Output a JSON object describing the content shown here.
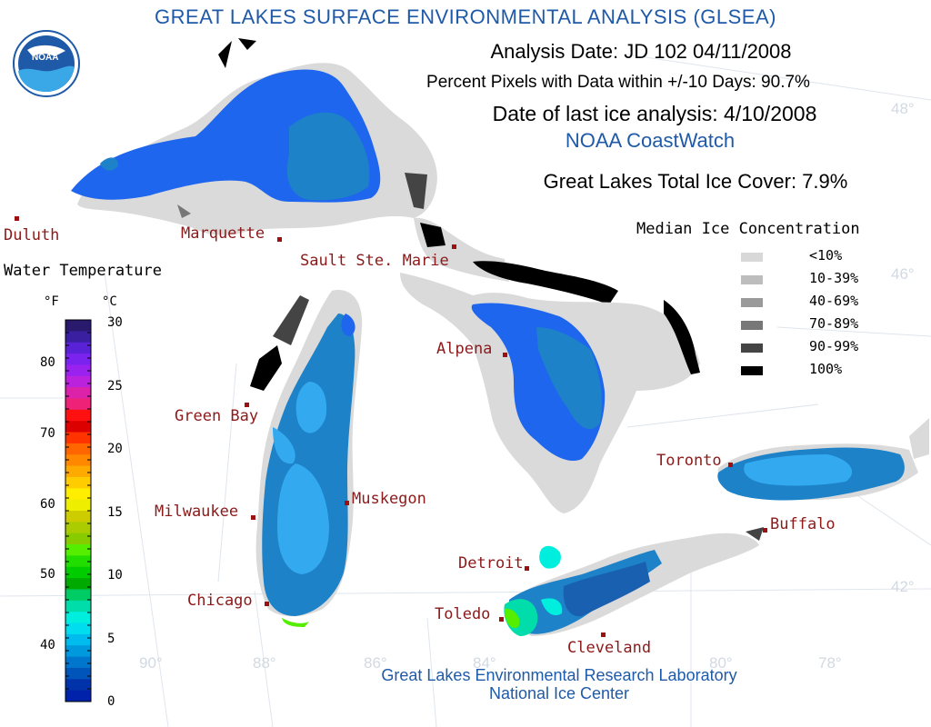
{
  "title": "GREAT LAKES SURFACE ENVIRONMENTAL ANALYSIS (GLSEA)",
  "logo_text": "NOAA",
  "analysis_date": "Analysis Date:  JD 102 04/11/2008",
  "percent_pixels": "Percent Pixels with Data within +/-10 Days:  90.7%",
  "last_ice": "Date of last ice analysis: 4/10/2008",
  "coastwatch": "NOAA CoastWatch",
  "ice_cover": "Great Lakes Total Ice Cover:   7.9%",
  "credits": {
    "line1": "Great Lakes Environmental Research Laboratory",
    "line2": "National Ice Center"
  },
  "water_temp": {
    "title": "Water Temperature",
    "f_unit": "°F",
    "c_unit": "°C",
    "f_ticks": [
      "80",
      "70",
      "60",
      "50",
      "40"
    ],
    "c_ticks": [
      "30",
      "25",
      "20",
      "15",
      "10",
      "5",
      "0"
    ],
    "colors_top_to_bottom": [
      "#2a1a6e",
      "#3a1fa0",
      "#5a22d6",
      "#7a22ee",
      "#9a22ee",
      "#bb22dd",
      "#dd22aa",
      "#ee2277",
      "#ff1111",
      "#dd0000",
      "#ff3300",
      "#ff6600",
      "#ff8800",
      "#ffaa00",
      "#ffcc00",
      "#ffee00",
      "#eeee00",
      "#cccc00",
      "#aacc00",
      "#88cc00",
      "#55ee00",
      "#22dd00",
      "#00cc00",
      "#00aa00",
      "#00cc66",
      "#00ddaa",
      "#00eedd",
      "#00ddee",
      "#00bbee",
      "#0099dd",
      "#0077cc",
      "#0055bb",
      "#0033aa",
      "#0022aa"
    ]
  },
  "ice_legend": {
    "title": "Median Ice Concentration",
    "items": [
      {
        "label": "<10%",
        "color": "#d8d8d8"
      },
      {
        "label": "10-39%",
        "color": "#bdbdbd"
      },
      {
        "label": "40-69%",
        "color": "#9a9a9a"
      },
      {
        "label": "70-89%",
        "color": "#777777"
      },
      {
        "label": "90-99%",
        "color": "#444444"
      },
      {
        "label": "100%",
        "color": "#000000"
      }
    ]
  },
  "cities": [
    "Duluth",
    "Marquette",
    "Sault Ste. Marie",
    "Green Bay",
    "Alpena",
    "Milwaukee",
    "Muskegon",
    "Chicago",
    "Detroit",
    "Toledo",
    "Cleveland",
    "Toronto",
    "Buffalo"
  ],
  "grid_labels": [
    "48°",
    "46°",
    "42°",
    "90°",
    "88°",
    "86°",
    "84°",
    "80°",
    "78°"
  ]
}
